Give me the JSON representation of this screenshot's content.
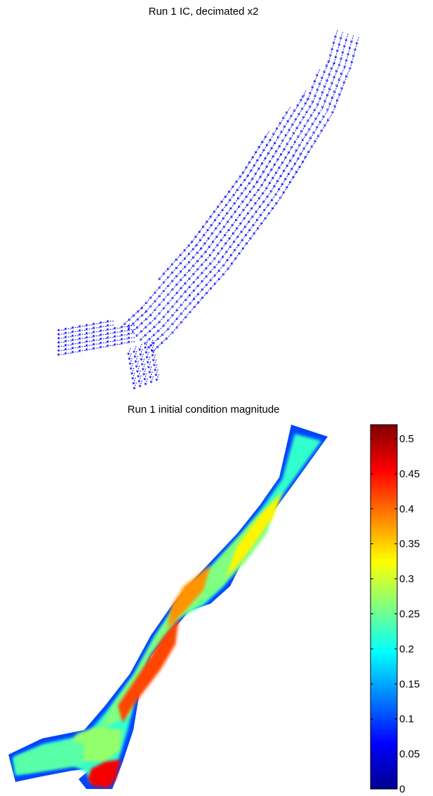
{
  "chart_data": [
    {
      "type": "quiver",
      "title": "Run 1 IC, decimated x2",
      "xlabel": "",
      "ylabel": "",
      "grid": false,
      "axes_visible": false,
      "arrow_color": "#0000ff",
      "series": [
        {
          "flow_direction": "down-left along the channel, turning to head left into the left branch",
          "arrows_shown": true
        }
      ]
    },
    {
      "type": "heatmap",
      "title": "Run 1 initial condition magnitude",
      "xlabel": "",
      "ylabel": "",
      "grid": false,
      "axes_visible": false,
      "colormap": "jet",
      "colorbar": {
        "range": [
          0,
          0.52
        ],
        "ticks": [
          "0",
          "0.05",
          "0.1",
          "0.15",
          "0.2",
          "0.25",
          "0.3",
          "0.35",
          "0.4",
          "0.45",
          "0.5"
        ],
        "tick_values": [
          0,
          0.05,
          0.1,
          0.15,
          0.2,
          0.25,
          0.3,
          0.35,
          0.4,
          0.45,
          0.5
        ]
      },
      "regions": [
        {
          "name": "upper channel",
          "value": 0.22
        },
        {
          "name": "upper core",
          "value": 0.33
        },
        {
          "name": "middle channel",
          "value": 0.26
        },
        {
          "name": "middle core",
          "value": 0.38
        },
        {
          "name": "lower core",
          "value": 0.42
        },
        {
          "name": "junction",
          "value": 0.27
        },
        {
          "name": "left branch",
          "value": 0.24
        },
        {
          "name": "bottom branch",
          "value": 0.46
        },
        {
          "name": "bank edges",
          "value": 0.1
        }
      ]
    }
  ]
}
